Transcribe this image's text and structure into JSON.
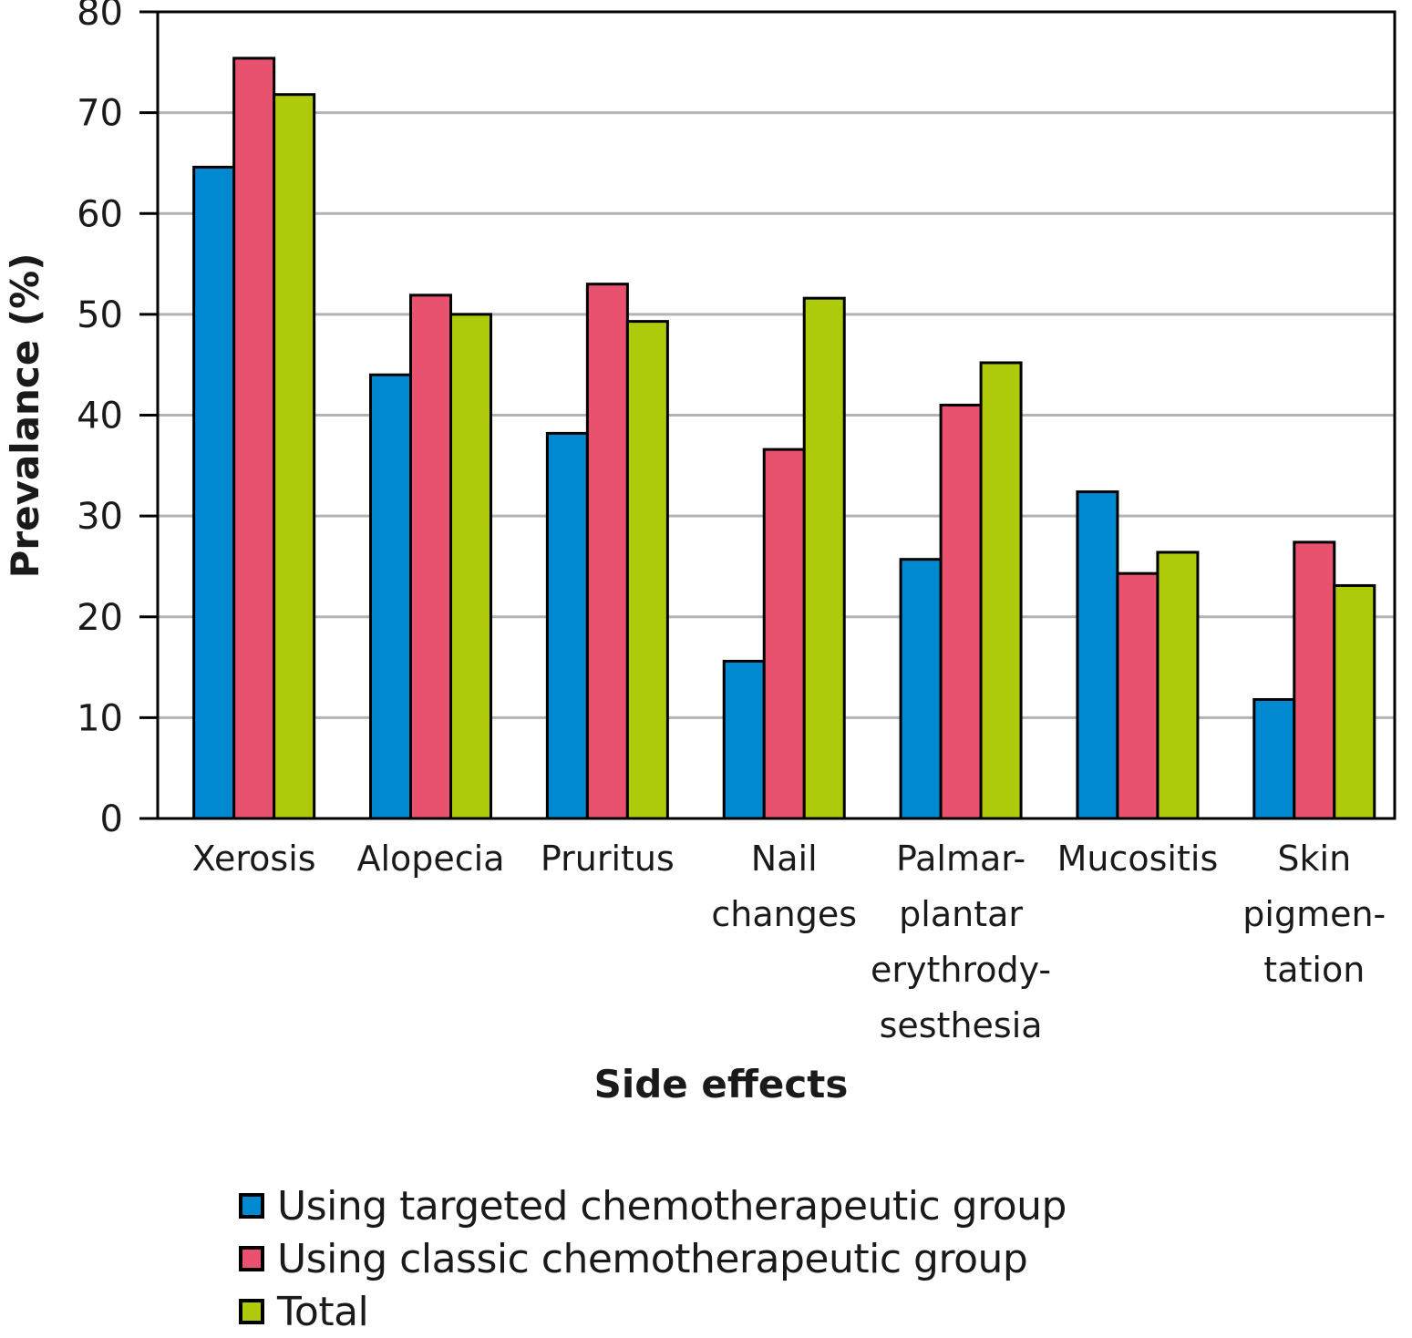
{
  "chart_data": {
    "type": "bar",
    "title": "",
    "xlabel": "Side effects",
    "ylabel": "Prevalance (%)",
    "ylim": [
      0,
      80
    ],
    "yticks": [
      0,
      10,
      20,
      30,
      40,
      50,
      60,
      70,
      80
    ],
    "grid": true,
    "legend_position": "bottom",
    "categories": [
      [
        "Xerosis"
      ],
      [
        "Alopecia"
      ],
      [
        "Pruritus"
      ],
      [
        "Nail",
        "changes"
      ],
      [
        "Palmar-",
        "plantar",
        "erythrody-",
        "sesthesia"
      ],
      [
        "Mucositis"
      ],
      [
        "Skin",
        "pigmen-",
        "tation"
      ]
    ],
    "series": [
      {
        "name": "Using targeted chemotherapeutic group",
        "color": "#0088d1",
        "values": [
          64.6,
          44.0,
          38.2,
          15.6,
          25.7,
          32.4,
          11.8
        ]
      },
      {
        "name": "Using classic chemotherapeutic group",
        "color": "#e8526f",
        "values": [
          75.4,
          51.9,
          53.0,
          36.6,
          41.0,
          24.3,
          27.4
        ]
      },
      {
        "name": "Total",
        "color": "#afca0b",
        "values": [
          71.8,
          50.0,
          49.3,
          51.6,
          45.2,
          26.4,
          23.1
        ]
      }
    ]
  }
}
